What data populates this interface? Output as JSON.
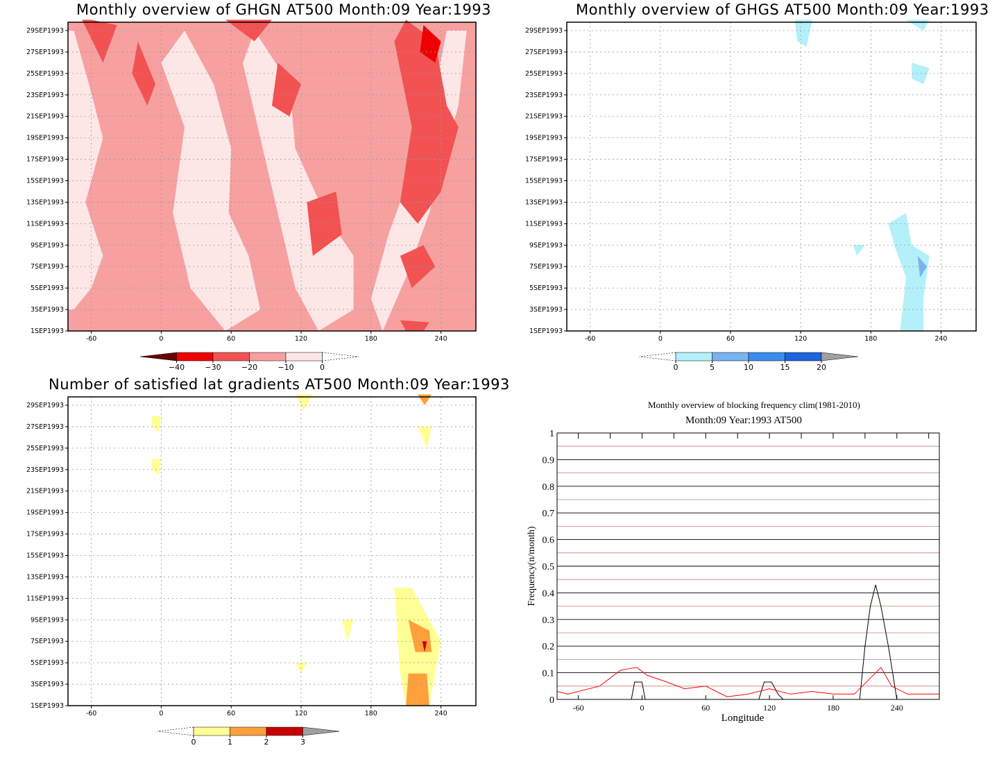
{
  "chart_data": [
    {
      "type": "heatmap",
      "title": "Monthly overview of GHGN AT500 Month:09 Year:1993",
      "x_ticks": [
        "-60",
        "0",
        "60",
        "120",
        "180",
        "240"
      ],
      "xlim": [
        -80,
        270
      ],
      "y_ticks": [
        "1SEP1993",
        "3SEP1993",
        "5SEP1993",
        "7SEP1993",
        "9SEP1993",
        "11SEP1993",
        "13SEP1993",
        "15SEP1993",
        "17SEP1993",
        "19SEP1993",
        "21SEP1993",
        "23SEP1993",
        "25SEP1993",
        "27SEP1993",
        "29SEP1993"
      ],
      "colorbar": {
        "labels": [
          "−40",
          "−30",
          "−20",
          "−10",
          "0"
        ],
        "colors": [
          "#6b0000",
          "#ee0000",
          "#f25252",
          "#f7a0a0",
          "#fde6e6"
        ]
      },
      "background_color": "#f7a0a0",
      "regions": [
        {
          "level": "−10",
          "color": "#fde6e6",
          "points": [
            [
              -75,
              3
            ],
            [
              -60,
              5
            ],
            [
              -50,
              8
            ],
            [
              -65,
              13
            ],
            [
              -50,
              19
            ],
            [
              -62,
              24
            ],
            [
              -75,
              29
            ],
            [
              -80,
              29
            ],
            [
              -80,
              3
            ]
          ]
        },
        {
          "level": "−10",
          "color": "#fde6e6",
          "points": [
            [
              20,
              29
            ],
            [
              45,
              24
            ],
            [
              60,
              18
            ],
            [
              58,
              12
            ],
            [
              75,
              8
            ],
            [
              85,
              3
            ],
            [
              55,
              1
            ],
            [
              25,
              5
            ],
            [
              10,
              12
            ],
            [
              20,
              20
            ],
            [
              0,
              26
            ]
          ]
        },
        {
          "level": "−10",
          "color": "#fde6e6",
          "points": [
            [
              80,
              29
            ],
            [
              110,
              24
            ],
            [
              115,
              18
            ],
            [
              140,
              12
            ],
            [
              165,
              8
            ],
            [
              165,
              3
            ],
            [
              135,
              1
            ],
            [
              115,
              5
            ],
            [
              100,
              12
            ],
            [
              85,
              19
            ],
            [
              70,
              26
            ]
          ]
        },
        {
          "level": "−10",
          "color": "#fde6e6",
          "points": [
            [
              190,
              1
            ],
            [
              210,
              6
            ],
            [
              230,
              12
            ],
            [
              245,
              18
            ],
            [
              255,
              22
            ],
            [
              262,
              29
            ],
            [
              245,
              29
            ],
            [
              232,
              22
            ],
            [
              215,
              16
            ],
            [
              195,
              10
            ],
            [
              180,
              4
            ]
          ]
        },
        {
          "level": "−20",
          "color": "#f25252",
          "points": [
            [
              -68,
              30
            ],
            [
              -50,
              26
            ],
            [
              -38,
              29.5
            ],
            [
              -60,
              30
            ]
          ]
        },
        {
          "level": "−20",
          "color": "#f25252",
          "points": [
            [
              -20,
              28
            ],
            [
              -5,
              24
            ],
            [
              -12,
              22
            ],
            [
              -25,
              25
            ]
          ]
        },
        {
          "level": "−20",
          "color": "#f25252",
          "points": [
            [
              55,
              30
            ],
            [
              80,
              28
            ],
            [
              95,
              30
            ]
          ]
        },
        {
          "level": "−20",
          "color": "#f25252",
          "points": [
            [
              100,
              26
            ],
            [
              120,
              24
            ],
            [
              110,
              21
            ],
            [
              95,
              22
            ]
          ]
        },
        {
          "level": "−20",
          "color": "#f25252",
          "points": [
            [
              210,
              30
            ],
            [
              235,
              28
            ],
            [
              245,
              22
            ],
            [
              255,
              20
            ],
            [
              240,
              14
            ],
            [
              220,
              11
            ],
            [
              205,
              13
            ],
            [
              215,
              20
            ],
            [
              200,
              28
            ]
          ]
        },
        {
          "level": "−20",
          "color": "#f25252",
          "points": [
            [
              125,
              13
            ],
            [
              150,
              14
            ],
            [
              155,
              10
            ],
            [
              130,
              8
            ]
          ]
        },
        {
          "level": "−20",
          "color": "#f25252",
          "points": [
            [
              205,
              8
            ],
            [
              225,
              9
            ],
            [
              235,
              7
            ],
            [
              215,
              5
            ]
          ]
        },
        {
          "level": "−20",
          "color": "#f25252",
          "points": [
            [
              205,
              2
            ],
            [
              230,
              1.8
            ],
            [
              225,
              1
            ],
            [
              210,
              1
            ]
          ]
        },
        {
          "level": "−30",
          "color": "#ee0000",
          "points": [
            [
              225,
              29.5
            ],
            [
              240,
              28
            ],
            [
              235,
              26
            ],
            [
              222,
              27
            ]
          ]
        }
      ]
    },
    {
      "type": "heatmap",
      "title": "Monthly overview of GHGS AT500 Month:09 Year:1993",
      "x_ticks": [
        "-60",
        "0",
        "60",
        "120",
        "180",
        "240"
      ],
      "xlim": [
        -80,
        270
      ],
      "y_ticks": [
        "1SEP1993",
        "3SEP1993",
        "5SEP1993",
        "7SEP1993",
        "9SEP1993",
        "11SEP1993",
        "13SEP1993",
        "15SEP1993",
        "17SEP1993",
        "19SEP1993",
        "21SEP1993",
        "23SEP1993",
        "25SEP1993",
        "27SEP1993",
        "29SEP1993"
      ],
      "colorbar": {
        "labels": [
          "0",
          "5",
          "10",
          "15",
          "20"
        ],
        "colors": [
          "#b4f0fa",
          "#78b4f0",
          "#3c8cf0",
          "#1e64dc",
          "#a0a0a0"
        ]
      },
      "background_color": "#ffffff",
      "regions": [
        {
          "level": "0",
          "color": "#b4f0fa",
          "points": [
            [
              115,
              30
            ],
            [
              130,
              30
            ],
            [
              125,
              27.5
            ],
            [
              117,
              28
            ]
          ]
        },
        {
          "level": "0",
          "color": "#b4f0fa",
          "points": [
            [
              210,
              30
            ],
            [
              230,
              30
            ],
            [
              225,
              29
            ]
          ]
        },
        {
          "level": "0",
          "color": "#b4f0fa",
          "points": [
            [
              215,
              26
            ],
            [
              230,
              25.5
            ],
            [
              225,
              24
            ],
            [
              215,
              24.5
            ]
          ]
        },
        {
          "level": "0",
          "color": "#b4f0fa",
          "points": [
            [
              195,
              11
            ],
            [
              210,
              12
            ],
            [
              215,
              9
            ],
            [
              230,
              8
            ],
            [
              225,
              4
            ],
            [
              225,
              1
            ],
            [
              205,
              1
            ],
            [
              210,
              6
            ],
            [
              200,
              9
            ]
          ]
        },
        {
          "level": "0",
          "color": "#b4f0fa",
          "points": [
            [
              165,
              9
            ],
            [
              175,
              9
            ],
            [
              168,
              8
            ]
          ]
        },
        {
          "level": "5",
          "color": "#78b4f0",
          "points": [
            [
              220,
              8
            ],
            [
              228,
              7
            ],
            [
              222,
              6
            ]
          ]
        }
      ]
    },
    {
      "type": "heatmap",
      "title": "Number of satisfied lat gradients AT500 Month:09 Year:1993",
      "x_ticks": [
        "-60",
        "0",
        "60",
        "120",
        "180",
        "240"
      ],
      "xlim": [
        -80,
        270
      ],
      "y_ticks": [
        "1SEP1993",
        "3SEP1993",
        "5SEP1993",
        "7SEP1993",
        "9SEP1993",
        "11SEP1993",
        "13SEP1993",
        "15SEP1993",
        "17SEP1993",
        "19SEP1993",
        "21SEP1993",
        "23SEP1993",
        "25SEP1993",
        "27SEP1993",
        "29SEP1993"
      ],
      "colorbar": {
        "labels": [
          "0",
          "1",
          "2",
          "3"
        ],
        "colors": [
          "#ffff96",
          "#ffa03c",
          "#c80000",
          "#a0a0a0"
        ]
      },
      "background_color": "#ffffff",
      "regions": [
        {
          "level": "0",
          "color": "#ffff96",
          "points": [
            [
              -8,
              28
            ],
            [
              0,
              28
            ],
            [
              -2,
              26.5
            ],
            [
              -8,
              27
            ]
          ]
        },
        {
          "level": "0",
          "color": "#ffff96",
          "points": [
            [
              -8,
              24
            ],
            [
              0,
              24
            ],
            [
              -2,
              22.5
            ],
            [
              -8,
              23
            ]
          ]
        },
        {
          "level": "0",
          "color": "#ffff96",
          "points": [
            [
              115,
              30
            ],
            [
              130,
              30
            ],
            [
              122,
              28.5
            ]
          ]
        },
        {
          "level": "0",
          "color": "#ffff96",
          "points": [
            [
              220,
              27
            ],
            [
              232,
              27
            ],
            [
              228,
              25
            ]
          ]
        },
        {
          "level": "0",
          "color": "#ffff96",
          "points": [
            [
              155,
              9
            ],
            [
              165,
              9
            ],
            [
              160,
              7
            ]
          ]
        },
        {
          "level": "0",
          "color": "#ffff96",
          "points": [
            [
              115,
              5
            ],
            [
              125,
              5
            ],
            [
              120,
              4
            ]
          ]
        },
        {
          "level": "0",
          "color": "#ffff96",
          "points": [
            [
              200,
              12
            ],
            [
              215,
              12
            ],
            [
              240,
              7
            ],
            [
              230,
              1
            ],
            [
              210,
              1
            ],
            [
              205,
              4
            ]
          ]
        },
        {
          "level": "1",
          "color": "#ffa03c",
          "points": [
            [
              210,
              1
            ],
            [
              230,
              1
            ],
            [
              228,
              4
            ],
            [
              212,
              4
            ]
          ]
        },
        {
          "level": "1",
          "color": "#ffa03c",
          "points": [
            [
              212,
              9
            ],
            [
              230,
              8
            ],
            [
              232,
              6
            ],
            [
              218,
              6
            ]
          ]
        },
        {
          "level": "1",
          "color": "#ffa03c",
          "points": [
            [
              220,
              30
            ],
            [
              232,
              30
            ],
            [
              226,
              29
            ]
          ]
        },
        {
          "level": "2",
          "color": "#c80000",
          "points": [
            [
              224,
              7
            ],
            [
              228,
              7
            ],
            [
              226,
              6
            ]
          ]
        }
      ]
    },
    {
      "type": "line",
      "title": "Monthly overview of blocking frequency clim(1981-2010)",
      "subtitle": "Month:09 Year:1993  AT500",
      "xlabel": "Longitude",
      "ylabel": "Frequency(n/month)",
      "xlim": [
        -80,
        280
      ],
      "ylim": [
        0,
        1
      ],
      "x_ticks": [
        "-60",
        "0",
        "60",
        "120",
        "180",
        "240"
      ],
      "y_ticks": [
        "0",
        "0.1",
        "0.2",
        "0.3",
        "0.4",
        "0.5",
        "0.6",
        "0.7",
        "0.8",
        "0.9",
        "1"
      ],
      "series": [
        {
          "color": "#000000",
          "x": [
            -80,
            -10,
            -7,
            0,
            3,
            6,
            110,
            115,
            122,
            128,
            133,
            240,
            205,
            210,
            215,
            220,
            225,
            232,
            240
          ],
          "y": [
            0,
            0,
            0.065,
            0.065,
            0,
            0,
            0,
            0.065,
            0.065,
            0.02,
            0,
            0,
            0,
            0.2,
            0.35,
            0.43,
            0.35,
            0.2,
            0
          ]
        },
        {
          "color": "#ff0000",
          "x": [
            -80,
            -70,
            -40,
            -20,
            -5,
            5,
            20,
            40,
            60,
            70,
            80,
            100,
            120,
            140,
            160,
            180,
            200,
            215,
            225,
            235,
            250,
            270,
            280
          ],
          "y": [
            0.03,
            0.02,
            0.05,
            0.11,
            0.12,
            0.09,
            0.07,
            0.04,
            0.05,
            0.03,
            0.01,
            0.02,
            0.04,
            0.02,
            0.03,
            0.02,
            0.02,
            0.08,
            0.12,
            0.05,
            0.02,
            0.02,
            0.02
          ]
        }
      ]
    }
  ]
}
